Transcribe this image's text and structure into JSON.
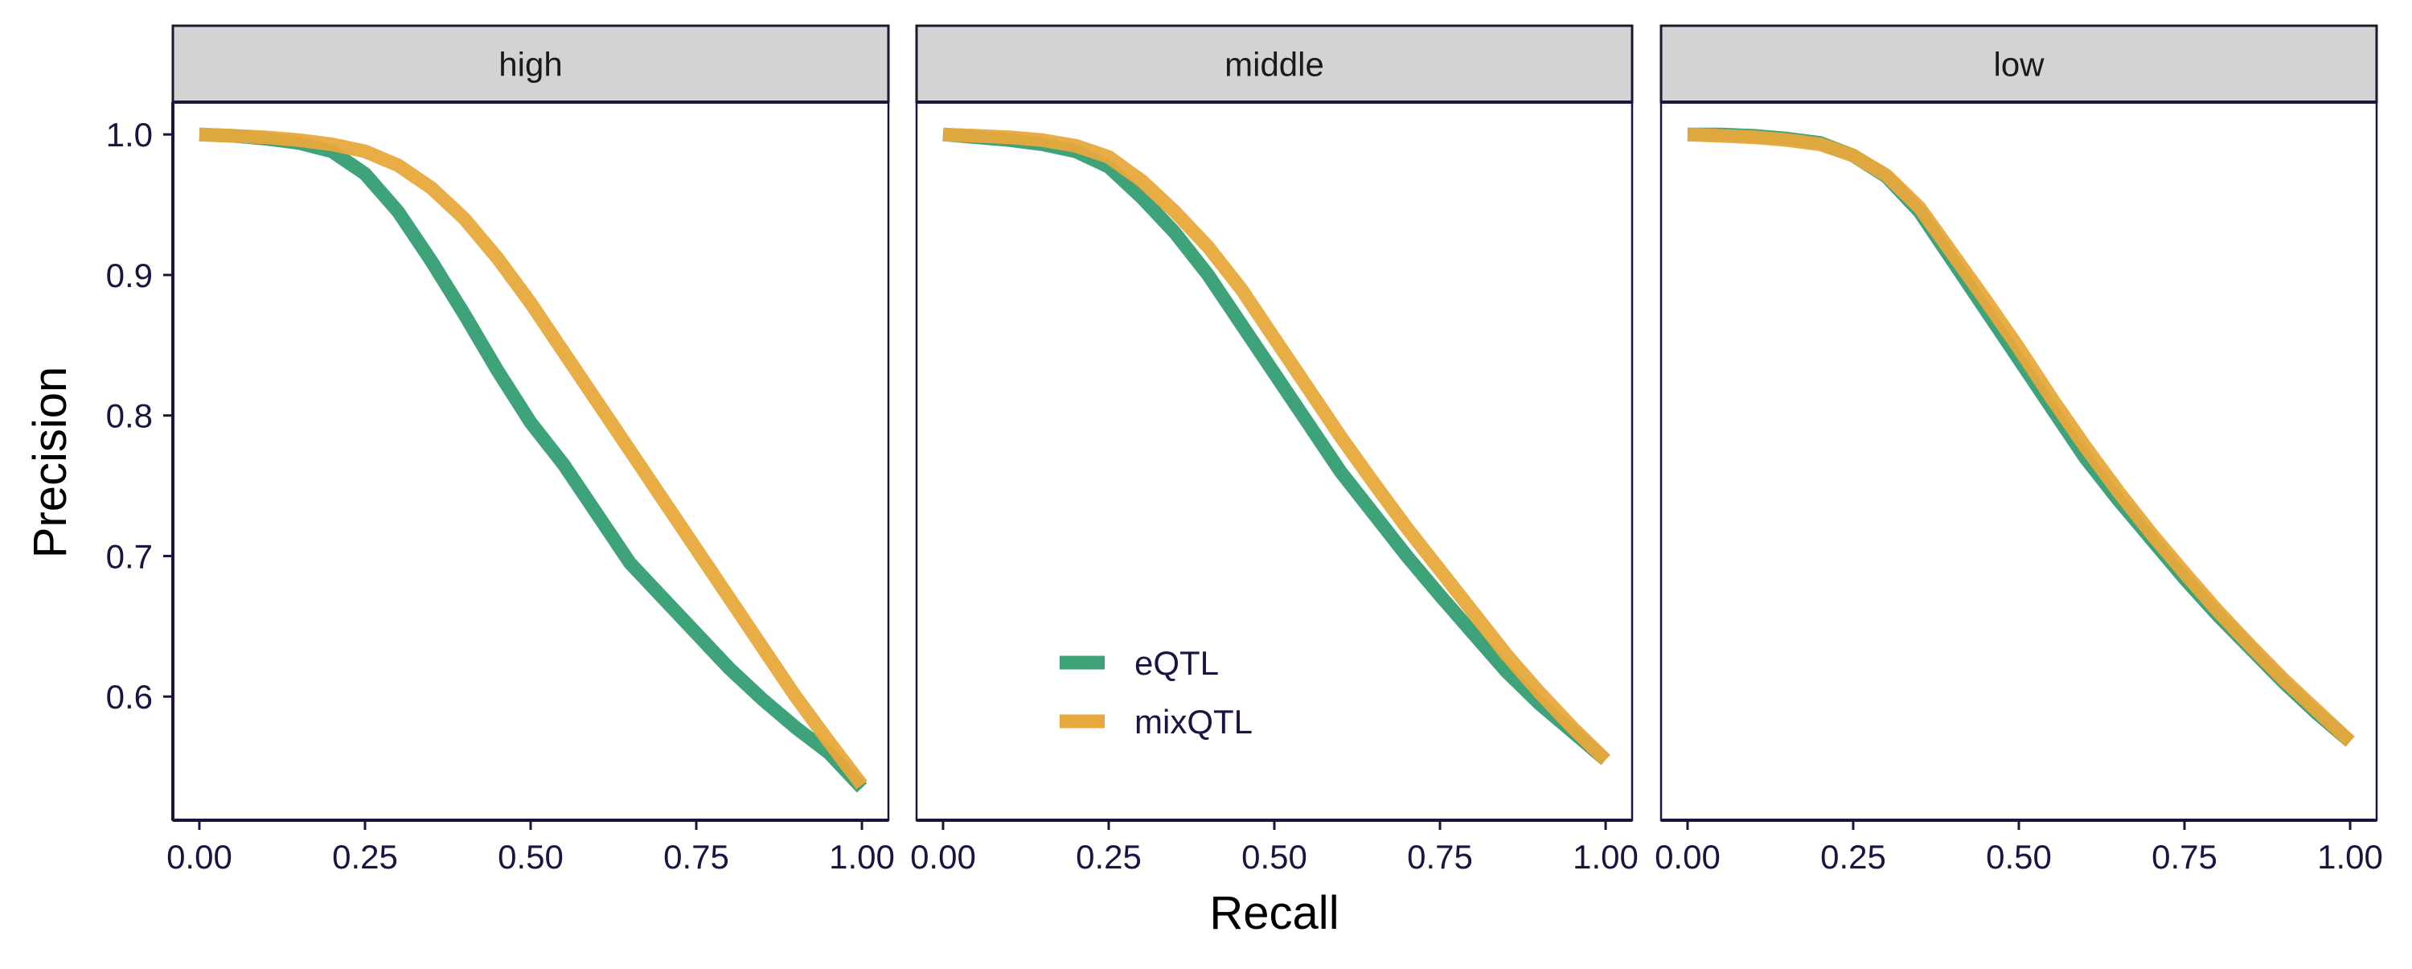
{
  "chart_data": {
    "type": "line",
    "xlabel": "Recall",
    "ylabel": "Precision",
    "xlim": [
      -0.04,
      1.04
    ],
    "ylim": [
      0.512,
      1.023
    ],
    "x_ticks": [
      0,
      0.25,
      0.5,
      0.75,
      1
    ],
    "x_tick_labels": [
      "0.00",
      "0.25",
      "0.50",
      "0.75",
      "1.00"
    ],
    "y_ticks": [
      0.6,
      0.7,
      0.8,
      0.9,
      1.0
    ],
    "y_tick_labels": [
      "0.6",
      "0.7",
      "0.8",
      "0.9",
      "1.0"
    ],
    "grid": false,
    "legend_placement": "inside-middle-panel-bottom-left",
    "series_styles": [
      {
        "name": "eQTL",
        "color": "#3FA37A"
      },
      {
        "name": "mixQTL",
        "color": "#E8A93C"
      }
    ],
    "panels": [
      {
        "label": "high",
        "series": [
          {
            "name": "eQTL",
            "x": [
              0,
              0.05,
              0.1,
              0.15,
              0.2,
              0.25,
              0.3,
              0.35,
              0.4,
              0.45,
              0.5,
              0.55,
              0.6,
              0.65,
              0.7,
              0.75,
              0.8,
              0.85,
              0.9,
              0.95,
              1.0
            ],
            "y": [
              1.0,
              0.999,
              0.997,
              0.994,
              0.988,
              0.972,
              0.945,
              0.91,
              0.872,
              0.832,
              0.795,
              0.765,
              0.73,
              0.695,
              0.67,
              0.645,
              0.62,
              0.598,
              0.578,
              0.56,
              0.535
            ]
          },
          {
            "name": "mixQTL",
            "x": [
              0,
              0.05,
              0.1,
              0.15,
              0.2,
              0.25,
              0.3,
              0.35,
              0.4,
              0.45,
              0.5,
              0.55,
              0.6,
              0.65,
              0.7,
              0.75,
              0.8,
              0.85,
              0.9,
              0.95,
              1.0
            ],
            "y": [
              1.0,
              0.999,
              0.998,
              0.996,
              0.993,
              0.988,
              0.978,
              0.962,
              0.94,
              0.912,
              0.88,
              0.845,
              0.81,
              0.775,
              0.74,
              0.705,
              0.67,
              0.635,
              0.6,
              0.568,
              0.537
            ]
          }
        ]
      },
      {
        "label": "middle",
        "series": [
          {
            "name": "eQTL",
            "x": [
              0,
              0.05,
              0.1,
              0.15,
              0.2,
              0.25,
              0.3,
              0.35,
              0.4,
              0.45,
              0.5,
              0.55,
              0.6,
              0.65,
              0.7,
              0.75,
              0.8,
              0.85,
              0.9,
              0.95,
              1.0
            ],
            "y": [
              1.0,
              0.998,
              0.996,
              0.993,
              0.988,
              0.977,
              0.955,
              0.93,
              0.9,
              0.865,
              0.83,
              0.795,
              0.76,
              0.73,
              0.7,
              0.672,
              0.645,
              0.618,
              0.595,
              0.575,
              0.555
            ]
          },
          {
            "name": "mixQTL",
            "x": [
              0,
              0.05,
              0.1,
              0.15,
              0.2,
              0.25,
              0.3,
              0.35,
              0.4,
              0.45,
              0.5,
              0.55,
              0.6,
              0.65,
              0.7,
              0.75,
              0.8,
              0.85,
              0.9,
              0.95,
              1.0
            ],
            "y": [
              1.0,
              0.999,
              0.998,
              0.996,
              0.992,
              0.984,
              0.967,
              0.945,
              0.92,
              0.89,
              0.855,
              0.82,
              0.785,
              0.752,
              0.72,
              0.69,
              0.66,
              0.63,
              0.603,
              0.578,
              0.555
            ]
          }
        ]
      },
      {
        "label": "low",
        "series": [
          {
            "name": "eQTL",
            "x": [
              0,
              0.05,
              0.1,
              0.15,
              0.2,
              0.25,
              0.3,
              0.35,
              0.4,
              0.45,
              0.5,
              0.55,
              0.6,
              0.65,
              0.7,
              0.75,
              0.8,
              0.85,
              0.9,
              0.95,
              1.0
            ],
            "y": [
              1.0,
              1.0,
              0.999,
              0.997,
              0.994,
              0.985,
              0.97,
              0.945,
              0.91,
              0.875,
              0.84,
              0.805,
              0.77,
              0.74,
              0.712,
              0.684,
              0.658,
              0.634,
              0.61,
              0.588,
              0.568
            ]
          },
          {
            "name": "mixQTL",
            "x": [
              0,
              0.05,
              0.1,
              0.15,
              0.2,
              0.25,
              0.3,
              0.35,
              0.4,
              0.45,
              0.5,
              0.55,
              0.6,
              0.65,
              0.7,
              0.75,
              0.8,
              0.85,
              0.9,
              0.95,
              1.0
            ],
            "y": [
              1.0,
              0.999,
              0.998,
              0.996,
              0.993,
              0.985,
              0.971,
              0.948,
              0.915,
              0.882,
              0.848,
              0.812,
              0.778,
              0.746,
              0.716,
              0.688,
              0.661,
              0.636,
              0.612,
              0.59,
              0.568
            ]
          }
        ]
      }
    ]
  }
}
